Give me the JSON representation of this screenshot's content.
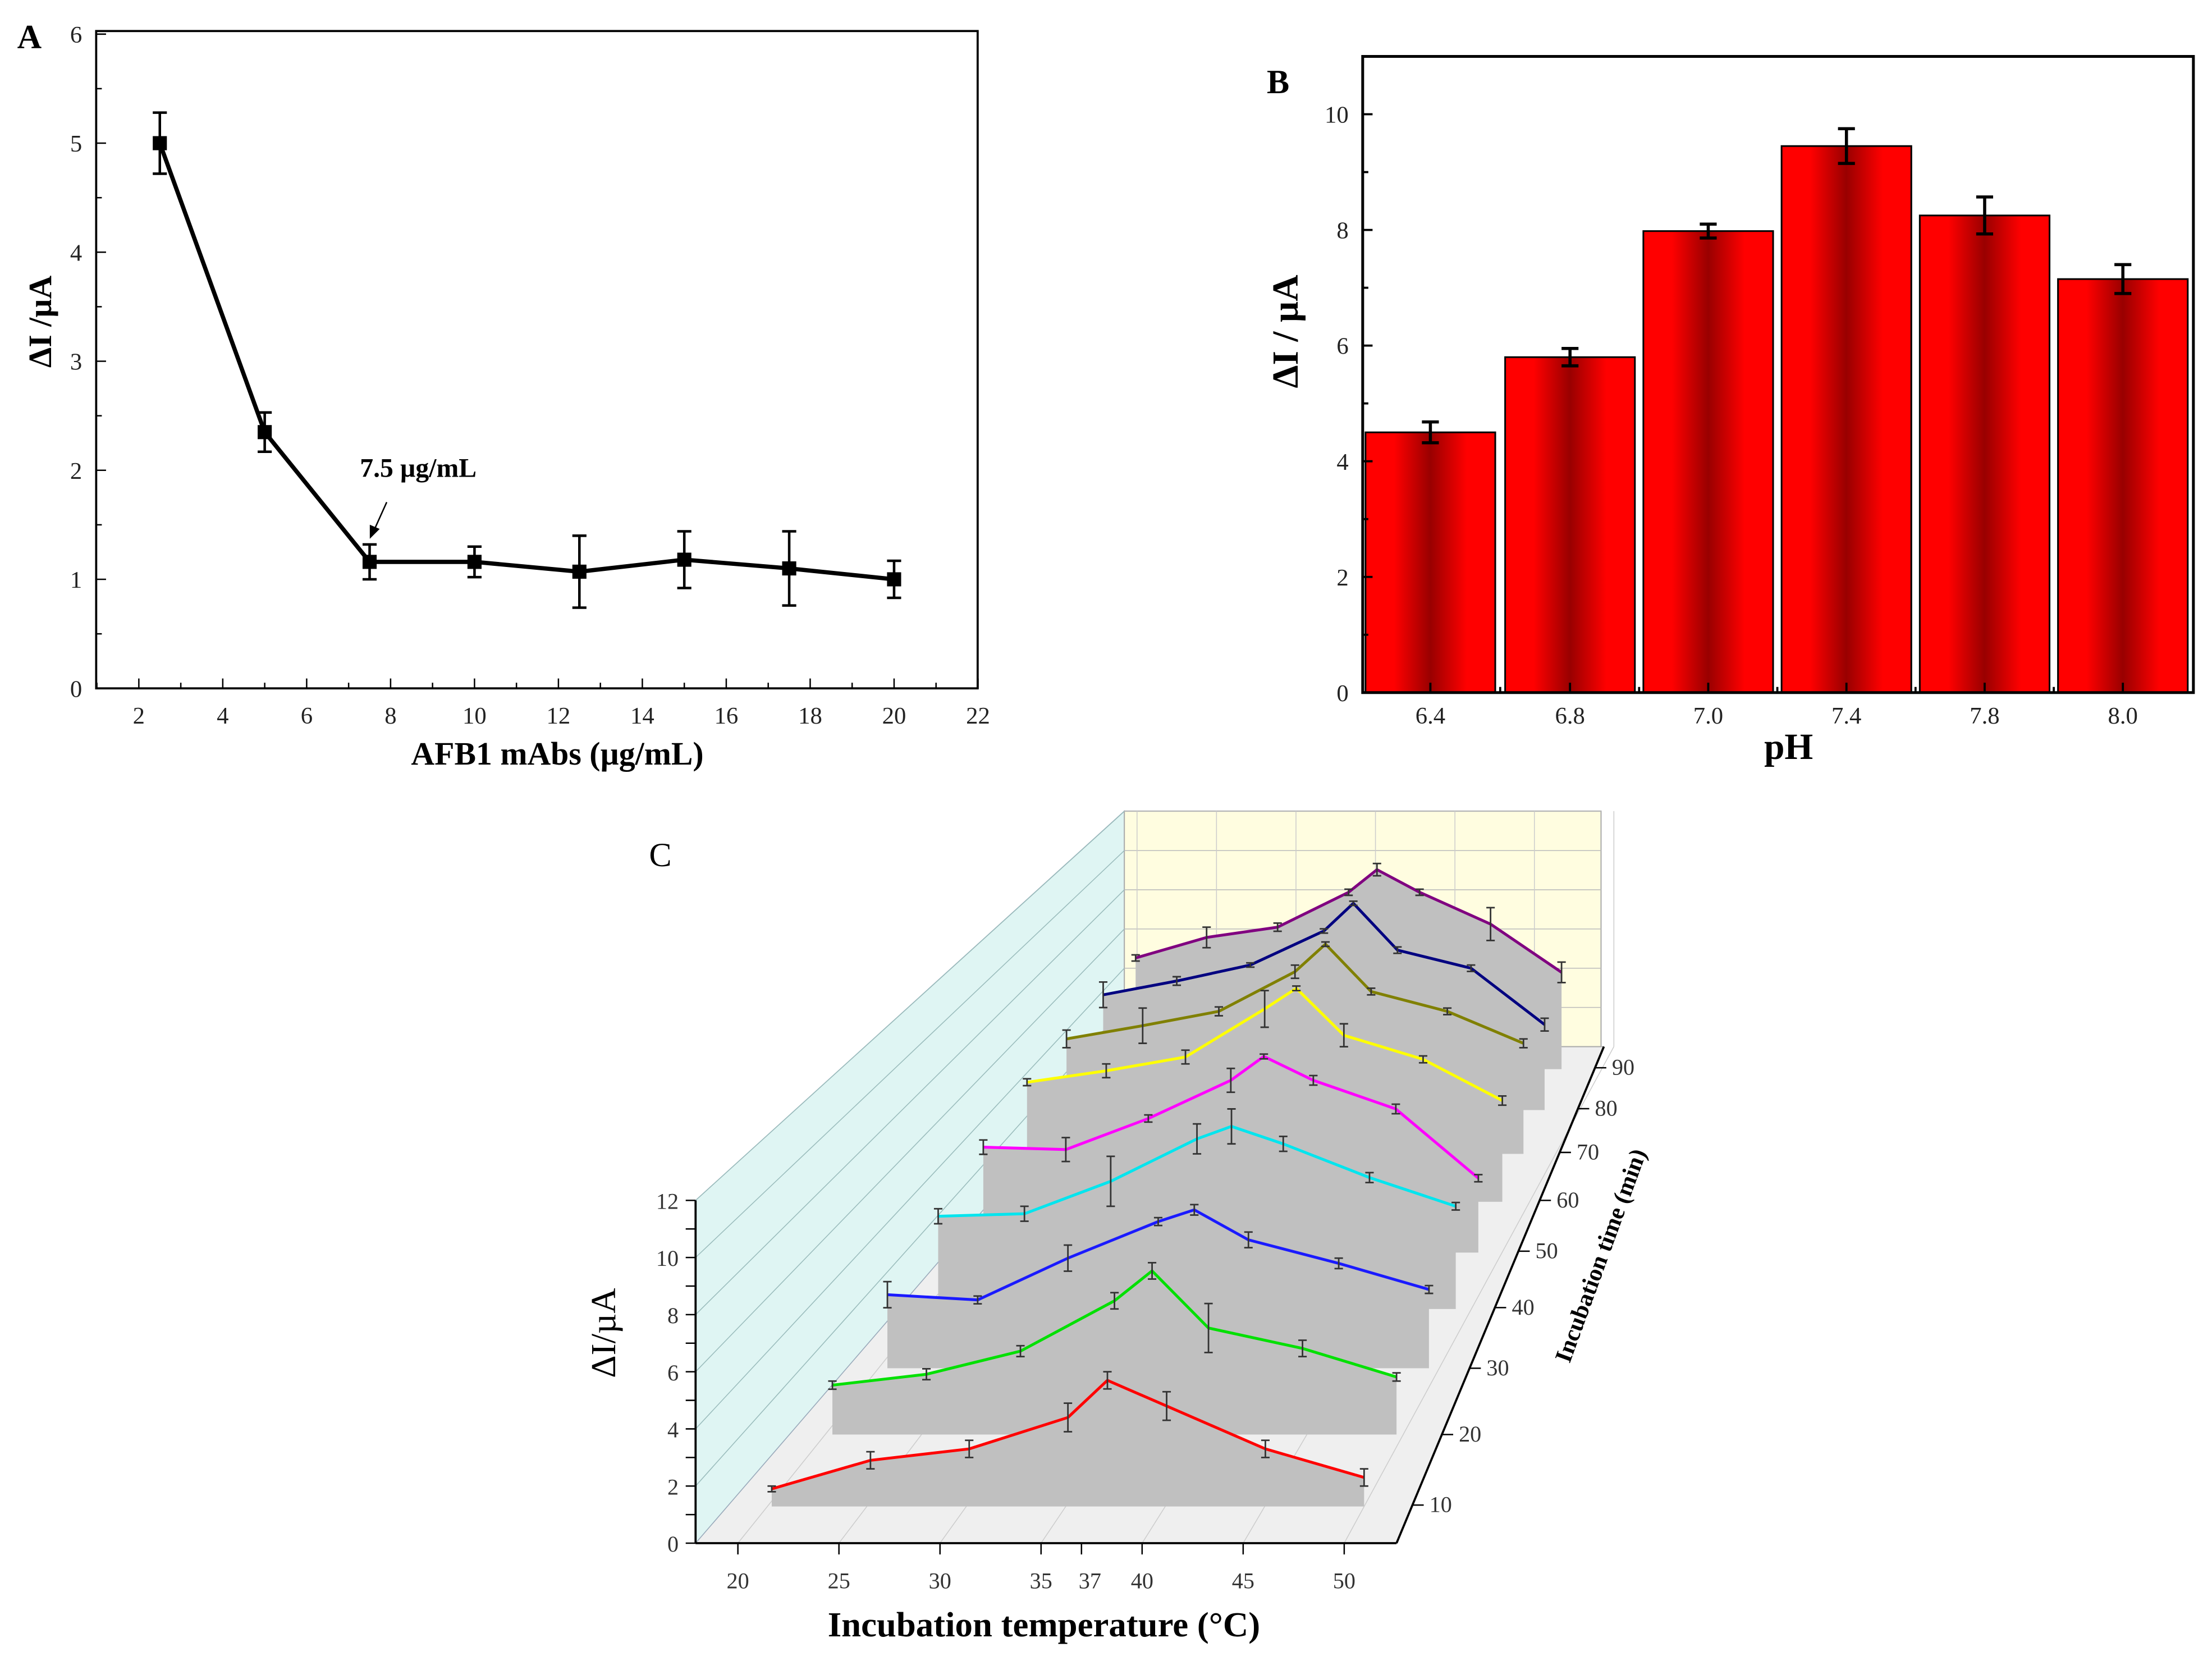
{
  "chart_data": [
    {
      "panel": "A",
      "type": "line",
      "panel_label": "A",
      "xlabel": "AFB1 mAbs (µg/mL)",
      "ylabel": "ΔI /µA",
      "xlim": [
        1,
        22
      ],
      "ylim": [
        0,
        6
      ],
      "xticks": [
        "2",
        "4",
        "6",
        "8",
        "10",
        "12",
        "14",
        "16",
        "18",
        "20",
        "22"
      ],
      "yticks": [
        "0",
        "1",
        "2",
        "3",
        "4",
        "5",
        "6"
      ],
      "annotation": "7.5 µg/mL",
      "x": [
        2.5,
        5,
        7.5,
        10,
        12.5,
        15,
        17.5,
        20
      ],
      "y": [
        5.0,
        2.35,
        1.16,
        1.16,
        1.07,
        1.18,
        1.1,
        1.0
      ],
      "error": [
        0.28,
        0.18,
        0.16,
        0.14,
        0.33,
        0.26,
        0.34,
        0.17
      ],
      "color": "#000000"
    },
    {
      "panel": "B",
      "type": "bar",
      "panel_label": "B",
      "xlabel": "pH",
      "ylabel": "ΔI / µA",
      "ylim": [
        0,
        11
      ],
      "yticks": [
        "0",
        "2",
        "4",
        "6",
        "8",
        "10"
      ],
      "categories": [
        "6.4",
        "6.8",
        "7.0",
        "7.4",
        "7.8",
        "8.0"
      ],
      "values": [
        4.5,
        5.8,
        7.98,
        9.45,
        8.25,
        7.15
      ],
      "error": [
        0.18,
        0.15,
        0.12,
        0.3,
        0.32,
        0.25
      ],
      "color": "#ff0000",
      "color_dark": "#990000"
    },
    {
      "panel": "C",
      "type": "line",
      "subtype": "3d-waterfall",
      "panel_label": "C",
      "xlabel": "Incubation temperature (°C)",
      "ylabel": "ΔI/µA",
      "zlabel": "Incubation time (min)",
      "x": [
        20,
        25,
        30,
        35,
        37,
        40,
        45,
        50
      ],
      "xticks": [
        "20",
        "25",
        "30",
        "35",
        "37",
        "40",
        "45",
        "50"
      ],
      "yticks": [
        "0",
        "2",
        "4",
        "6",
        "8",
        "10",
        "12"
      ],
      "zticks": [
        "10",
        "20",
        "30",
        "40",
        "50",
        "60",
        "70",
        "80",
        "90"
      ],
      "ylim": [
        0,
        12
      ],
      "series": [
        {
          "name": "10",
          "color": "#ff0000",
          "values": [
            1.9,
            2.9,
            3.3,
            4.4,
            5.7,
            4.8,
            3.3,
            2.3
          ],
          "error": [
            0.1,
            0.3,
            0.3,
            0.5,
            0.3,
            0.5,
            0.3,
            0.3
          ]
        },
        {
          "name": "20",
          "color": "#00e000",
          "values": [
            3.1,
            3.5,
            4.35,
            6.2,
            7.3,
            5.2,
            4.45,
            3.4
          ],
          "error": [
            0.15,
            0.2,
            0.2,
            0.3,
            0.3,
            0.9,
            0.3,
            0.15
          ]
        },
        {
          "name": "30",
          "color": "#1a1aff",
          "values": [
            4.1,
            3.9,
            5.5,
            6.9,
            7.35,
            6.2,
            5.3,
            4.3
          ],
          "error": [
            0.5,
            0.15,
            0.5,
            0.15,
            0.2,
            0.3,
            0.2,
            0.15
          ]
        },
        {
          "name": "40",
          "color": "#00e5ee",
          "values": [
            5.0,
            5.1,
            6.4,
            8.1,
            8.6,
            7.9,
            6.55,
            5.4
          ],
          "error": [
            0.3,
            0.3,
            1.0,
            0.6,
            0.7,
            0.3,
            0.2,
            0.15
          ]
        },
        {
          "name": "50",
          "color": "#ff00ff",
          "values": [
            5.7,
            5.6,
            6.9,
            8.5,
            9.5,
            8.5,
            7.3,
            4.4
          ],
          "error": [
            0.3,
            0.5,
            0.15,
            0.5,
            0.1,
            0.2,
            0.2,
            0.15
          ]
        },
        {
          "name": "60",
          "color": "#ffff00",
          "values": [
            6.5,
            7.0,
            7.6,
            9.7,
            10.6,
            8.55,
            7.5,
            5.7
          ],
          "error": [
            0.15,
            0.3,
            0.3,
            0.8,
            0.1,
            0.5,
            0.15,
            0.2
          ]
        },
        {
          "name": "70",
          "color": "#808000",
          "values": [
            6.5,
            7.1,
            7.75,
            9.55,
            10.8,
            8.65,
            7.75,
            6.3
          ],
          "error": [
            0.4,
            0.8,
            0.2,
            0.3,
            0.1,
            0.15,
            0.15,
            0.2
          ]
        },
        {
          "name": "80",
          "color": "#000080",
          "values": [
            6.7,
            7.35,
            8.1,
            9.7,
            11.0,
            8.8,
            7.95,
            5.3
          ],
          "error": [
            0.6,
            0.2,
            0.1,
            0.1,
            0.1,
            0.15,
            0.15,
            0.3
          ]
        },
        {
          "name": "90",
          "color": "#800080",
          "values": [
            6.7,
            7.7,
            8.2,
            9.9,
            11.0,
            9.9,
            8.35,
            6.0
          ],
          "error": [
            0.15,
            0.5,
            0.2,
            0.15,
            0.3,
            0.15,
            0.8,
            0.5
          ]
        }
      ]
    }
  ]
}
